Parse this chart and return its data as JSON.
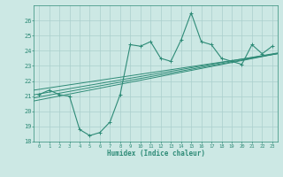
{
  "xlabel": "Humidex (Indice chaleur)",
  "x_data": [
    0,
    1,
    2,
    3,
    4,
    5,
    6,
    7,
    8,
    9,
    10,
    11,
    12,
    13,
    14,
    15,
    16,
    17,
    18,
    19,
    20,
    21,
    22,
    23
  ],
  "y_data": [
    21.1,
    21.4,
    21.1,
    21.0,
    18.8,
    18.4,
    18.6,
    19.3,
    21.1,
    24.4,
    24.3,
    24.6,
    23.5,
    23.3,
    24.7,
    26.5,
    24.6,
    24.4,
    23.5,
    23.3,
    23.1,
    24.4,
    23.8,
    24.3
  ],
  "line_color": "#2e8b77",
  "bg_color": "#cce8e4",
  "grid_color": "#aacfcc",
  "ylim": [
    18,
    27
  ],
  "xlim": [
    -0.5,
    23.5
  ],
  "yticks": [
    18,
    19,
    20,
    21,
    22,
    23,
    24,
    25,
    26
  ],
  "xticks": [
    0,
    1,
    2,
    3,
    4,
    5,
    6,
    7,
    8,
    9,
    10,
    11,
    12,
    13,
    14,
    15,
    16,
    17,
    18,
    19,
    20,
    21,
    22,
    23
  ],
  "regression_lines": [
    {
      "slope": 0.115,
      "intercept": 21.15
    },
    {
      "slope": 0.13,
      "intercept": 20.75
    },
    {
      "slope": 0.1,
      "intercept": 21.45
    },
    {
      "slope": 0.122,
      "intercept": 20.95
    }
  ]
}
